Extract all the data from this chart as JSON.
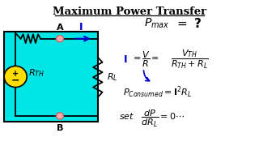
{
  "title": "Maximum Power Transfer",
  "bg_color": "#ffffff",
  "circuit_bg": "#00e5e5",
  "node_color": "#ffaaaa",
  "battery_color": "#ffdd00",
  "text_color": "#000000",
  "blue_color": "#0000cc"
}
